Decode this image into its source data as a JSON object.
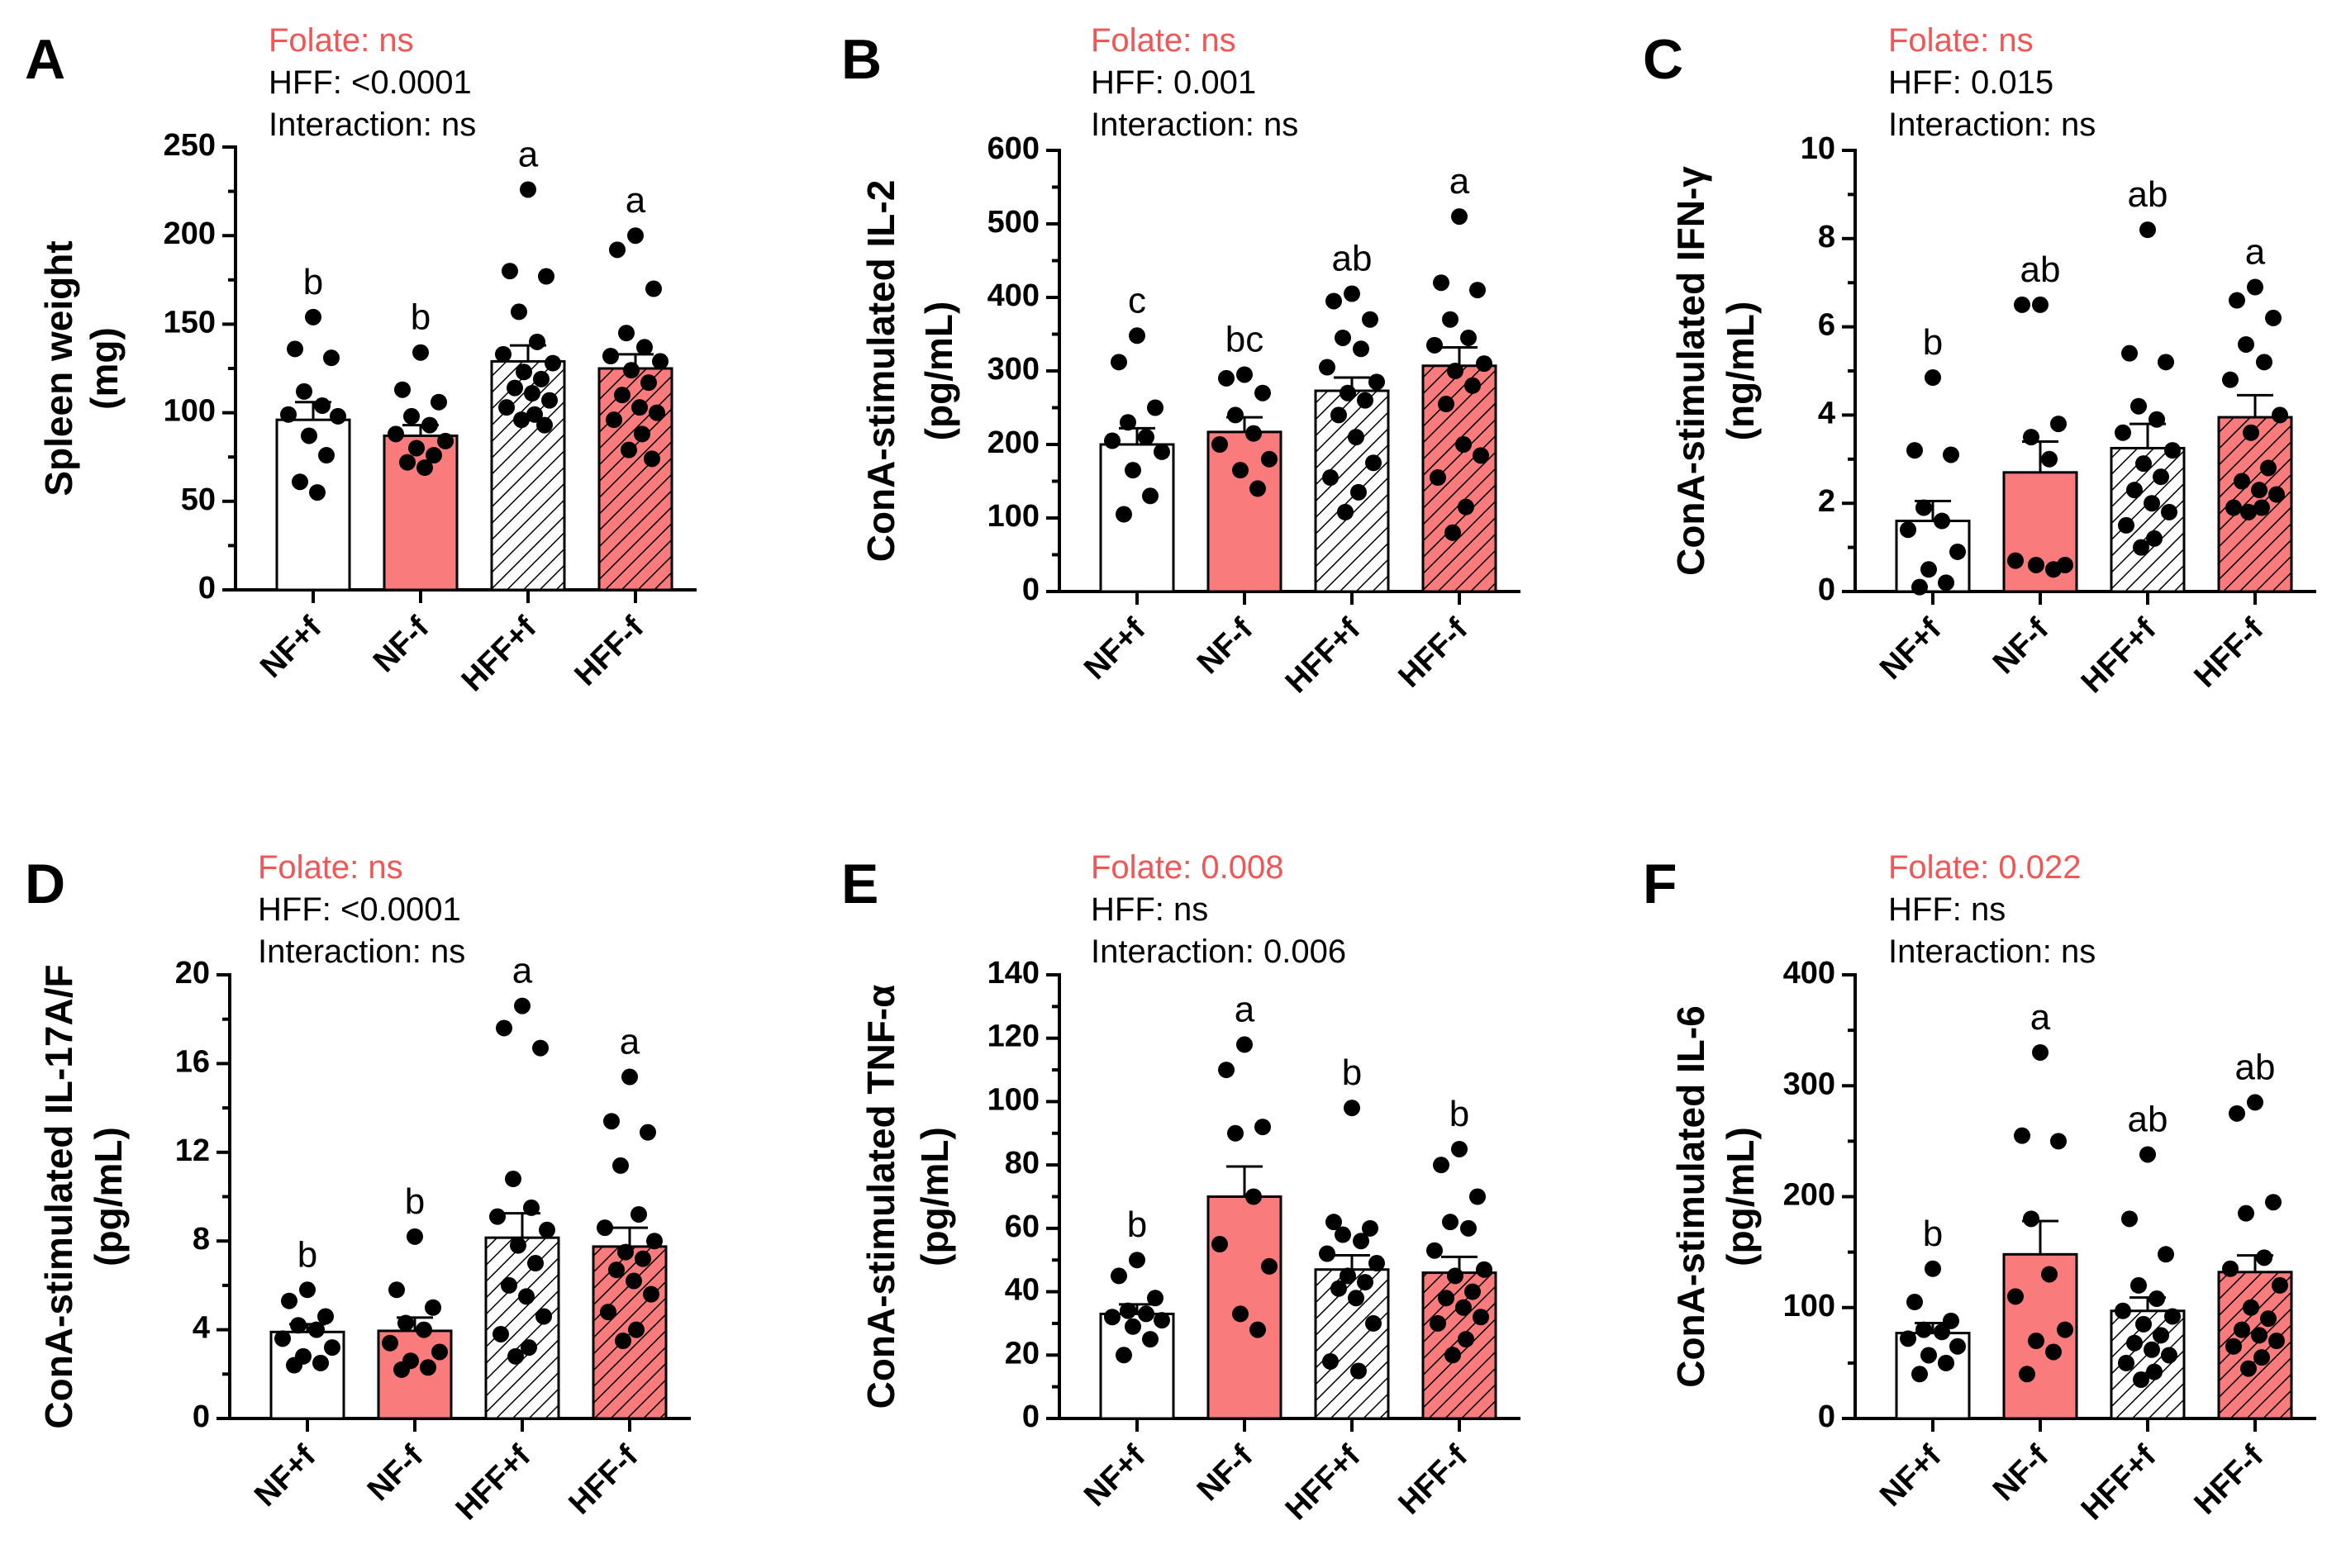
{
  "colors": {
    "folate": "#f25555",
    "bar_white": "#ffffff",
    "bar_red": "#f97b7b",
    "hatch": "#000000",
    "point": "#000000"
  },
  "panels": [
    {
      "letter": "A",
      "stats": {
        "folate": "Folate: ns",
        "hff": "HFF: <0.0001",
        "interaction": "Interaction: ns"
      },
      "chart_data": {
        "type": "bar",
        "ylabel_line1": "Spleen weight",
        "ylabel_line2": "(mg)",
        "ylim": [
          0,
          250
        ],
        "yticks": [
          0,
          50,
          100,
          150,
          200,
          250
        ],
        "categories": [
          "NF+f",
          "NF-f",
          "HFF+f",
          "HFF-f"
        ],
        "means": [
          96,
          87,
          129,
          125
        ],
        "sems": [
          10,
          6,
          9,
          8
        ],
        "letters": [
          "b",
          "b",
          "a",
          "a"
        ],
        "points": [
          [
            154,
            136,
            131,
            112,
            104,
            99,
            98,
            87,
            76,
            61,
            55
          ],
          [
            134,
            113,
            106,
            98,
            93,
            88,
            84,
            80,
            76,
            72,
            69
          ],
          [
            226,
            180,
            177,
            157,
            140,
            133,
            128,
            123,
            119,
            114,
            111,
            107,
            103,
            99,
            96,
            93
          ],
          [
            200,
            192,
            170,
            145,
            137,
            132,
            129,
            124,
            117,
            110,
            103,
            100,
            96,
            88,
            79,
            74
          ]
        ]
      }
    },
    {
      "letter": "B",
      "stats": {
        "folate": "Folate: ns",
        "hff": "HFF: 0.001",
        "interaction": "Interaction: ns"
      },
      "chart_data": {
        "type": "bar",
        "ylabel_line1": "ConA-stimulated IL-2",
        "ylabel_line2": "(pg/mL)",
        "ylim": [
          0,
          600
        ],
        "yticks": [
          0,
          100,
          200,
          300,
          400,
          500,
          600
        ],
        "categories": [
          "NF+f",
          "NF-f",
          "HFF+f",
          "HFF-f"
        ],
        "means": [
          200,
          217,
          273,
          307
        ],
        "sems": [
          22,
          20,
          18,
          25
        ],
        "letters": [
          "c",
          "bc",
          "ab",
          "a"
        ],
        "points": [
          [
            348,
            312,
            250,
            230,
            210,
            205,
            190,
            165,
            130,
            105
          ],
          [
            295,
            290,
            270,
            240,
            215,
            200,
            180,
            165,
            140
          ],
          [
            405,
            395,
            370,
            345,
            330,
            305,
            285,
            270,
            260,
            240,
            210,
            175,
            155,
            135,
            108
          ],
          [
            510,
            420,
            410,
            370,
            345,
            335,
            310,
            300,
            280,
            255,
            200,
            185,
            155,
            115,
            80
          ]
        ]
      }
    },
    {
      "letter": "C",
      "stats": {
        "folate": "Folate: ns",
        "hff": "HFF: 0.015",
        "interaction": "Interaction: ns"
      },
      "chart_data": {
        "type": "bar",
        "ylabel_line1": "ConA-stimulated IFN-γ",
        "ylabel_line2": "(ng/mL)",
        "ylim": [
          0,
          10
        ],
        "yticks": [
          0,
          2,
          4,
          6,
          8,
          10
        ],
        "categories": [
          "NF+f",
          "NF-f",
          "HFF+f",
          "HFF-f"
        ],
        "means": [
          1.6,
          2.7,
          3.25,
          3.95
        ],
        "sems": [
          0.45,
          0.7,
          0.55,
          0.5
        ],
        "letters": [
          "b",
          "ab",
          "ab",
          "a"
        ],
        "points": [
          [
            4.85,
            3.2,
            3.1,
            1.9,
            1.6,
            1.4,
            0.9,
            0.5,
            0.2,
            0.1
          ],
          [
            6.5,
            6.5,
            3.8,
            3.5,
            3.0,
            0.7,
            0.6,
            0.6,
            0.5
          ],
          [
            8.2,
            5.4,
            5.2,
            4.2,
            3.9,
            3.6,
            3.2,
            2.9,
            2.6,
            2.3,
            2.0,
            1.8,
            1.5,
            1.2,
            1.0
          ],
          [
            6.9,
            6.6,
            6.2,
            5.6,
            5.2,
            4.8,
            4.0,
            3.6,
            2.8,
            2.5,
            2.3,
            2.2,
            1.9,
            1.9,
            1.8
          ]
        ]
      }
    },
    {
      "letter": "D",
      "stats": {
        "folate": "Folate: ns",
        "hff": "HFF: <0.0001",
        "interaction": "Interaction: ns"
      },
      "chart_data": {
        "type": "bar",
        "ylabel_line1": "ConA-stimulated IL-17A/F",
        "ylabel_line2": "(pg/mL)",
        "ylim": [
          0,
          20
        ],
        "yticks": [
          0,
          4,
          8,
          12,
          16,
          20
        ],
        "categories": [
          "NF+f",
          "NF-f",
          "HFF+f",
          "HFF-f"
        ],
        "means": [
          3.9,
          3.95,
          8.15,
          7.75
        ],
        "sems": [
          0.35,
          0.6,
          1.1,
          0.85
        ],
        "letters": [
          "b",
          "b",
          "a",
          "a"
        ],
        "points": [
          [
            5.8,
            5.3,
            4.6,
            4.2,
            4.0,
            3.6,
            3.2,
            2.8,
            2.5,
            2.4
          ],
          [
            8.2,
            5.8,
            5.0,
            4.3,
            4.0,
            3.4,
            3.0,
            2.6,
            2.3,
            2.2
          ],
          [
            18.6,
            17.6,
            16.7,
            10.8,
            9.5,
            9.1,
            8.5,
            7.8,
            7.0,
            6.0,
            5.5,
            4.6,
            3.8,
            3.2,
            2.8
          ],
          [
            15.4,
            13.4,
            12.9,
            11.4,
            9.2,
            8.6,
            8.0,
            7.5,
            7.2,
            6.7,
            6.2,
            5.6,
            4.8,
            4.0,
            3.5
          ]
        ]
      }
    },
    {
      "letter": "E",
      "stats": {
        "folate": "Folate: 0.008",
        "hff": "HFF: ns",
        "interaction": "Interaction: 0.006"
      },
      "chart_data": {
        "type": "bar",
        "ylabel_line1": "ConA-stimulated TNF-α",
        "ylabel_line2": "(pg/mL)",
        "ylim": [
          0,
          140
        ],
        "yticks": [
          0,
          20,
          40,
          60,
          80,
          100,
          120,
          140
        ],
        "categories": [
          "NF+f",
          "NF-f",
          "HFF+f",
          "HFF-f"
        ],
        "means": [
          33,
          70,
          47,
          46
        ],
        "sems": [
          3,
          9.5,
          4.5,
          5
        ],
        "letters": [
          "b",
          "a",
          "b",
          "b"
        ],
        "points": [
          [
            50,
            45,
            38,
            34,
            33,
            32,
            31,
            29,
            25,
            20
          ],
          [
            118,
            110,
            92,
            90,
            70,
            55,
            48,
            33,
            28
          ],
          [
            98,
            62,
            60,
            58,
            56,
            52,
            49,
            45,
            43,
            41,
            38,
            30,
            18,
            15
          ],
          [
            85,
            80,
            70,
            62,
            60,
            53,
            47,
            45,
            40,
            38,
            35,
            32,
            30,
            25,
            20
          ]
        ]
      }
    },
    {
      "letter": "F",
      "stats": {
        "folate": "Folate: 0.022",
        "hff": "HFF: ns",
        "interaction": "Interaction: ns"
      },
      "chart_data": {
        "type": "bar",
        "ylabel_line1": "ConA-stimulated IL-6",
        "ylabel_line2": "(pg/mL)",
        "ylim": [
          0,
          400
        ],
        "yticks": [
          0,
          100,
          200,
          300,
          400
        ],
        "categories": [
          "NF+f",
          "NF-f",
          "HFF+f",
          "HFF-f"
        ],
        "means": [
          77,
          148,
          97,
          132
        ],
        "sems": [
          9,
          30,
          12,
          15
        ],
        "letters": [
          "b",
          "a",
          "ab",
          "ab"
        ],
        "points": [
          [
            135,
            105,
            88,
            80,
            78,
            72,
            65,
            57,
            50,
            40
          ],
          [
            330,
            255,
            250,
            180,
            130,
            110,
            80,
            70,
            60,
            40
          ],
          [
            238,
            180,
            148,
            120,
            108,
            97,
            92,
            85,
            75,
            68,
            62,
            57,
            50,
            42,
            35
          ],
          [
            285,
            275,
            195,
            185,
            145,
            135,
            120,
            100,
            90,
            80,
            75,
            70,
            65,
            55,
            45
          ]
        ]
      }
    }
  ]
}
